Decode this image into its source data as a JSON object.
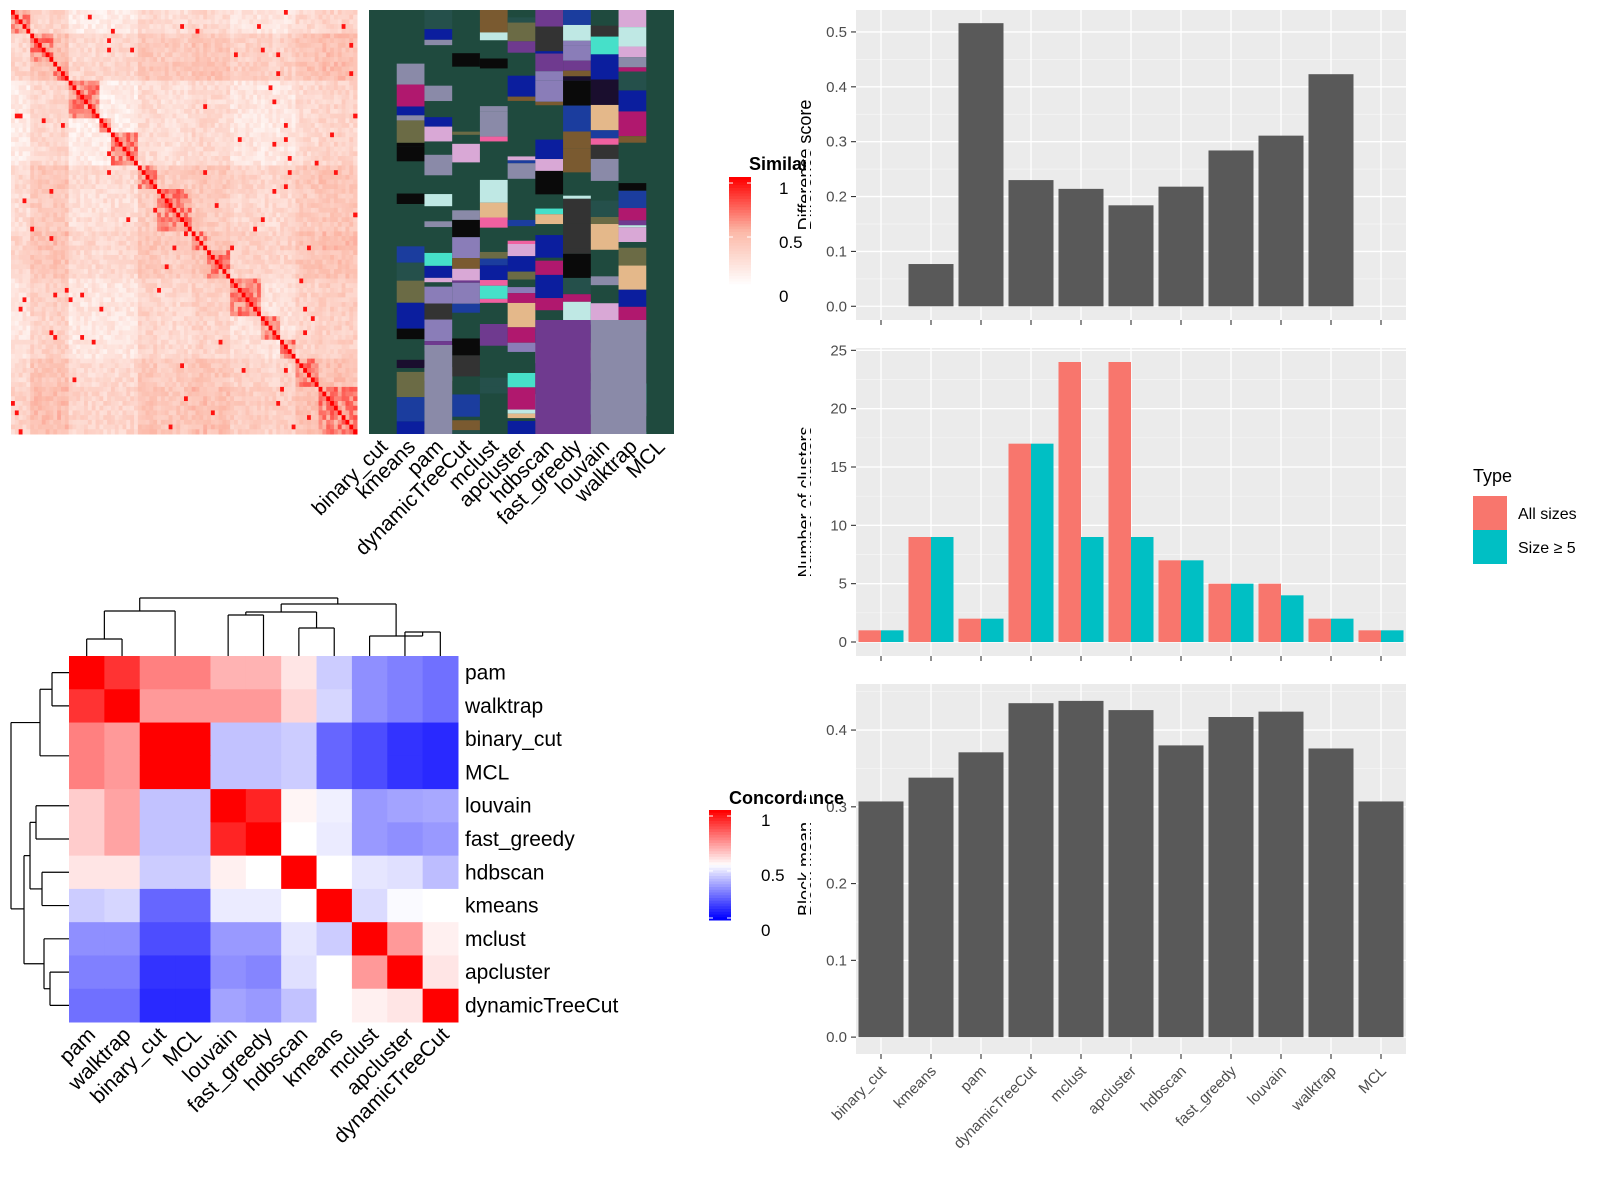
{
  "colors": {
    "bar_fill": "#595959",
    "all_sizes": "#F8766D",
    "size_ge5": "#00BFC4",
    "panel_bg": "#EBEBEB",
    "annotation_bg": "#1F4A3E"
  },
  "similarity_legend": {
    "title": "Similarity",
    "ticks": [
      "1",
      "0.5",
      "0"
    ]
  },
  "concordance_legend": {
    "title": "Concordance",
    "ticks": [
      "1",
      "0.5",
      "0"
    ]
  },
  "annotation_methods": [
    "binary_cut",
    "kmeans",
    "pam",
    "dynamicTreeCut",
    "mclust",
    "apcluster",
    "hdbscan",
    "fast_greedy",
    "louvain",
    "walktrap",
    "MCL"
  ],
  "type_legend": {
    "title": "Type",
    "items": [
      "All sizes",
      "Size ≥ 5"
    ]
  },
  "chart_data": [
    {
      "type": "bar",
      "title": "",
      "xlabel": "",
      "ylabel": "Difference score",
      "categories": [
        "binary_cut",
        "kmeans",
        "pam",
        "dynamicTreeCut",
        "mclust",
        "apcluster",
        "hdbscan",
        "fast_greedy",
        "louvain",
        "walktrap",
        "MCL"
      ],
      "values": [
        0,
        0.077,
        0.516,
        0.23,
        0.214,
        0.184,
        0.218,
        0.284,
        0.311,
        0.423,
        0
      ],
      "ylim": [
        -0.025,
        0.54
      ],
      "yticks": [
        "0.0",
        "0.1",
        "0.2",
        "0.3",
        "0.4",
        "0.5"
      ],
      "grid": true
    },
    {
      "type": "bar",
      "title": "",
      "xlabel": "",
      "ylabel": "Number of clusters",
      "categories": [
        "binary_cut",
        "kmeans",
        "pam",
        "dynamicTreeCut",
        "mclust",
        "apcluster",
        "hdbscan",
        "fast_greedy",
        "louvain",
        "walktrap",
        "MCL"
      ],
      "series": [
        {
          "name": "All sizes",
          "values": [
            1,
            9,
            2,
            17,
            24,
            24,
            7,
            5,
            5,
            2,
            1
          ]
        },
        {
          "name": "Size ≥ 5",
          "values": [
            1,
            9,
            2,
            17,
            9,
            9,
            7,
            5,
            4,
            2,
            1
          ]
        }
      ],
      "ylim": [
        -1.2,
        25.2
      ],
      "yticks": [
        "0",
        "5",
        "10",
        "15",
        "20",
        "25"
      ],
      "legend": "right",
      "grid": true
    },
    {
      "type": "bar",
      "title": "",
      "xlabel": "",
      "ylabel": "Block mean",
      "categories": [
        "binary_cut",
        "kmeans",
        "pam",
        "dynamicTreeCut",
        "mclust",
        "apcluster",
        "hdbscan",
        "fast_greedy",
        "louvain",
        "walktrap",
        "MCL"
      ],
      "values": [
        0.307,
        0.338,
        0.371,
        0.435,
        0.438,
        0.426,
        0.38,
        0.417,
        0.424,
        0.376,
        0.307
      ],
      "ylim": [
        -0.022,
        0.46
      ],
      "yticks": [
        "0.0",
        "0.1",
        "0.2",
        "0.3",
        "0.4"
      ],
      "grid": true
    },
    {
      "type": "heatmap",
      "title": "",
      "rows": [
        "pam",
        "walktrap",
        "binary_cut",
        "MCL",
        "louvain",
        "fast_greedy",
        "hdbscan",
        "kmeans",
        "mclust",
        "apcluster",
        "dynamicTreeCut"
      ],
      "columns": [
        "pam",
        "walktrap",
        "binary_cut",
        "MCL",
        "louvain",
        "fast_greedy",
        "hdbscan",
        "kmeans",
        "mclust",
        "apcluster",
        "dynamicTreeCut"
      ],
      "values": [
        [
          1.0,
          0.9,
          0.75,
          0.75,
          0.65,
          0.65,
          0.55,
          0.4,
          0.28,
          0.25,
          0.22
        ],
        [
          0.9,
          1.0,
          0.7,
          0.7,
          0.7,
          0.7,
          0.58,
          0.42,
          0.28,
          0.25,
          0.22
        ],
        [
          0.75,
          0.7,
          1.0,
          1.0,
          0.38,
          0.38,
          0.4,
          0.2,
          0.15,
          0.1,
          0.08
        ],
        [
          0.75,
          0.7,
          1.0,
          1.0,
          0.38,
          0.38,
          0.4,
          0.2,
          0.15,
          0.1,
          0.08
        ],
        [
          0.6,
          0.68,
          0.38,
          0.38,
          1.0,
          0.93,
          0.52,
          0.47,
          0.3,
          0.32,
          0.33
        ],
        [
          0.6,
          0.68,
          0.38,
          0.38,
          0.93,
          1.0,
          0.5,
          0.46,
          0.3,
          0.28,
          0.3
        ],
        [
          0.55,
          0.55,
          0.4,
          0.4,
          0.53,
          0.5,
          1.0,
          0.5,
          0.45,
          0.44,
          0.37
        ],
        [
          0.4,
          0.42,
          0.2,
          0.2,
          0.46,
          0.46,
          0.5,
          1.0,
          0.43,
          0.49,
          0.5
        ],
        [
          0.28,
          0.28,
          0.15,
          0.15,
          0.3,
          0.3,
          0.45,
          0.4,
          1.0,
          0.7,
          0.53
        ],
        [
          0.25,
          0.25,
          0.1,
          0.1,
          0.28,
          0.26,
          0.44,
          0.5,
          0.7,
          1.0,
          0.55
        ],
        [
          0.22,
          0.22,
          0.08,
          0.08,
          0.32,
          0.3,
          0.38,
          0.5,
          0.53,
          0.55,
          1.0
        ]
      ]
    }
  ]
}
